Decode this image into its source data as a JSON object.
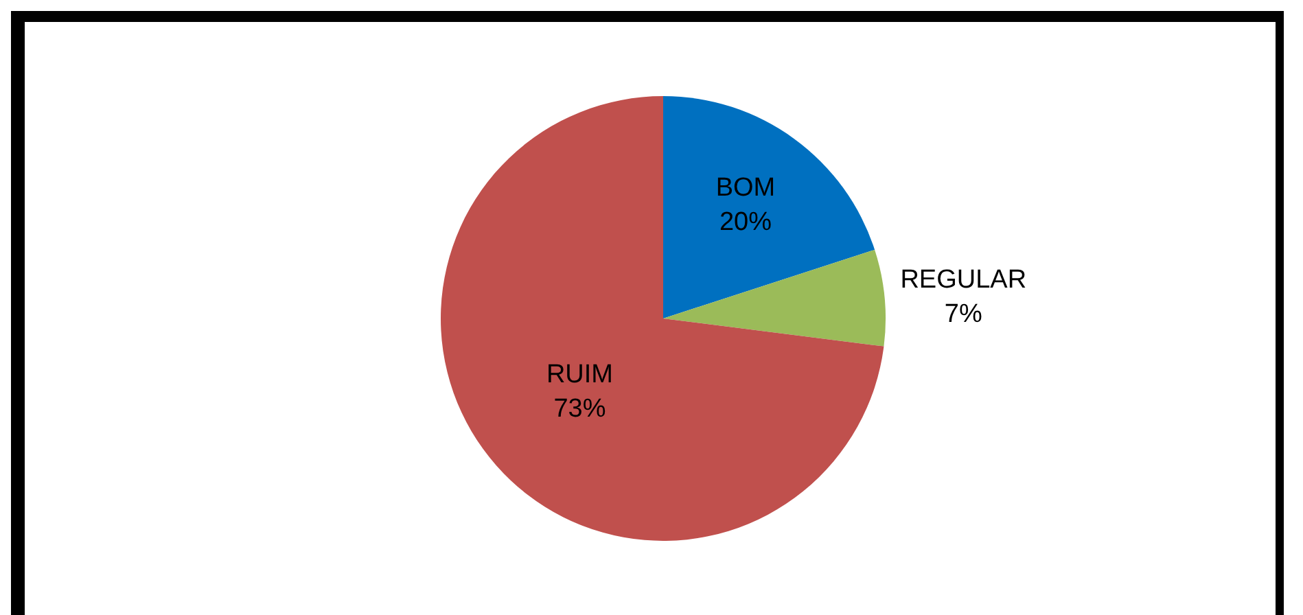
{
  "chart_data": {
    "type": "pie",
    "categories": [
      "BOM",
      "REGULAR",
      "RUIM"
    ],
    "values": [
      20,
      7,
      73
    ],
    "value_labels": [
      "20%",
      "7%",
      "73%"
    ],
    "colors": [
      "#0070c0",
      "#9bbb59",
      "#c0504d"
    ],
    "legend": false
  }
}
